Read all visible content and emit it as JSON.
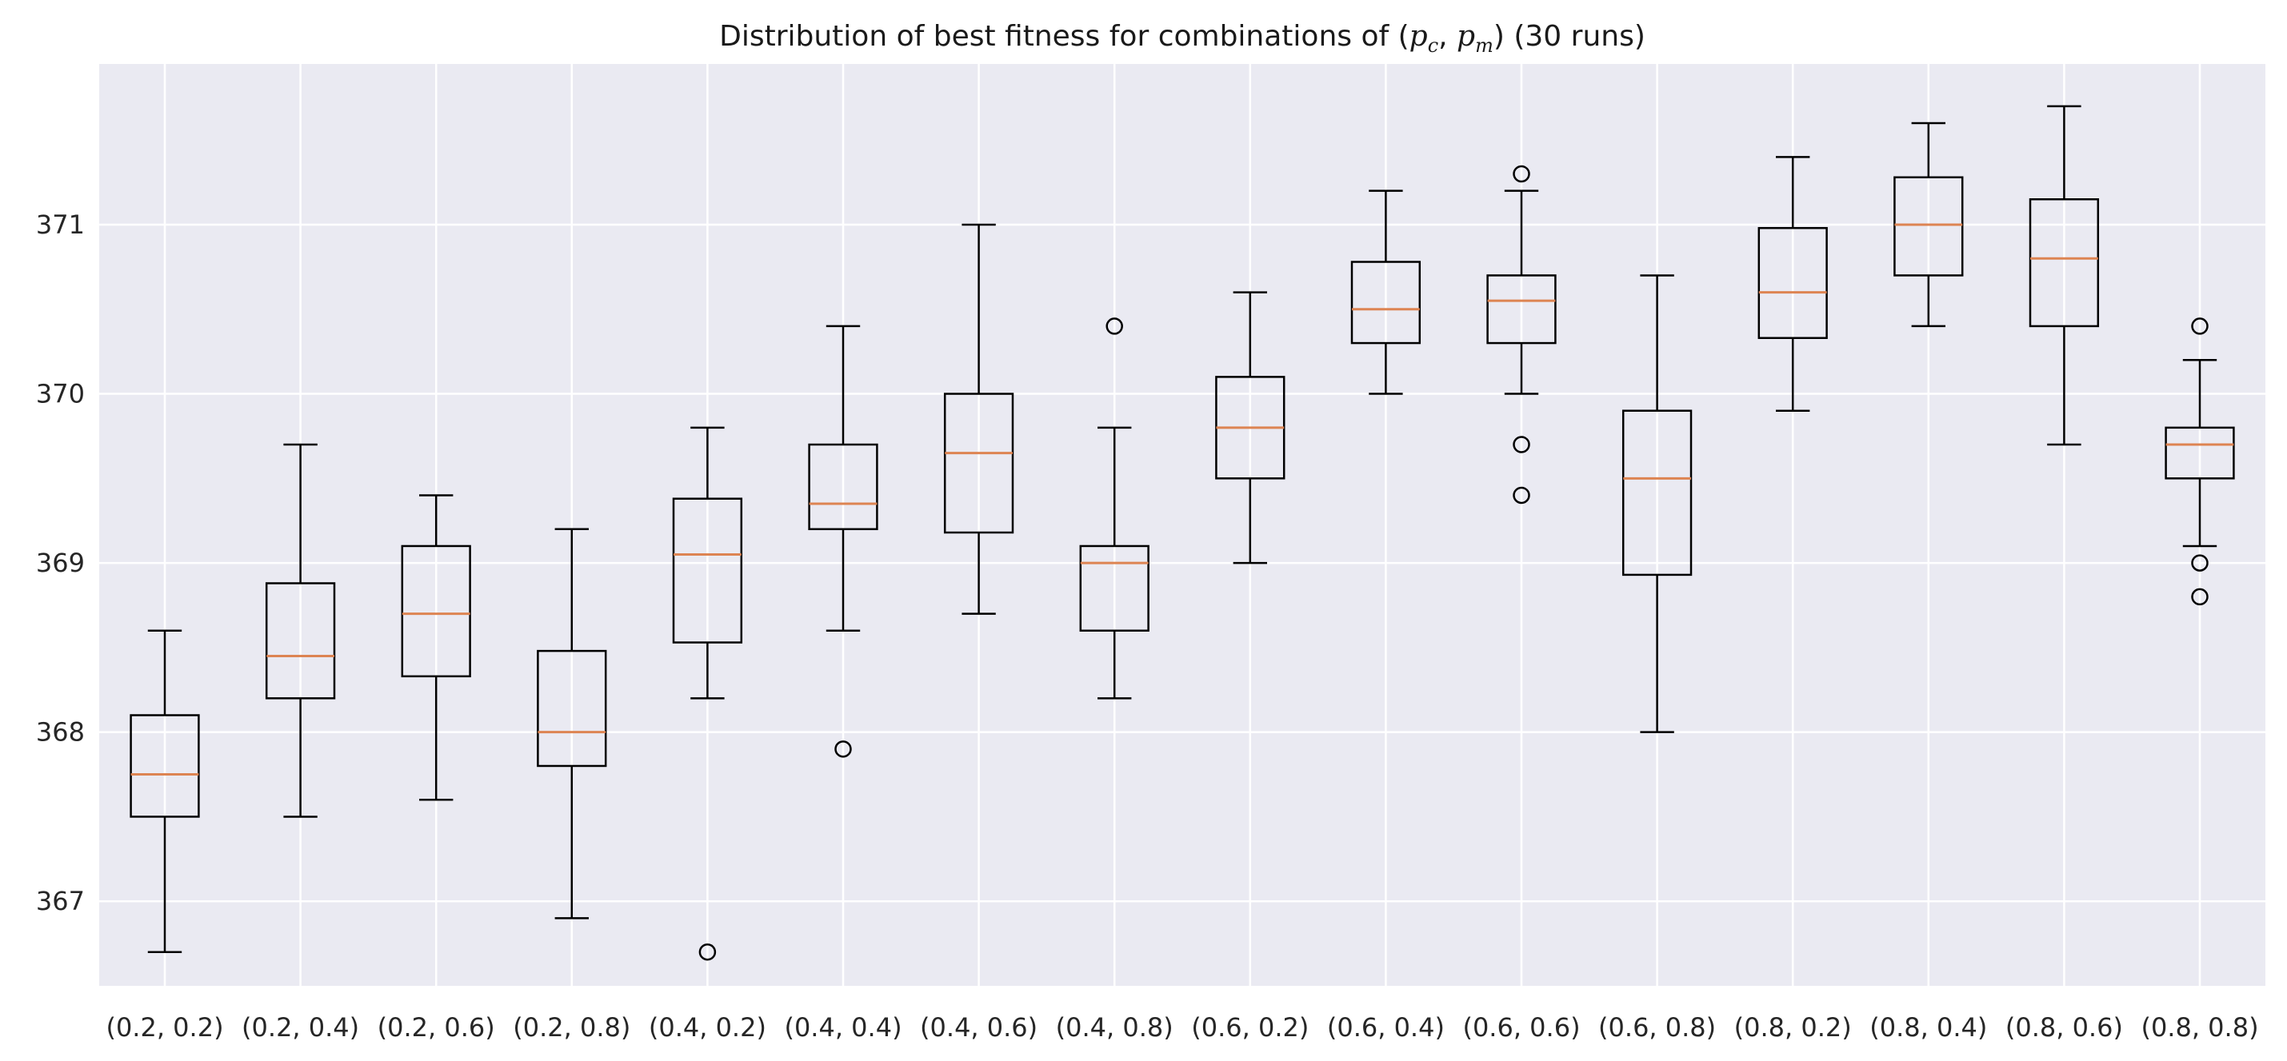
{
  "chart_data": {
    "type": "box",
    "title_parts": {
      "prefix": "Distribution of best fitness for combinations of (",
      "var1": "p",
      "sub1": "c",
      "sep": ", ",
      "var2": "p",
      "sub2": "m",
      "suffix": ") (30 runs)"
    },
    "xlabel": "",
    "ylabel": "",
    "ylim": [
      366.5,
      371.95
    ],
    "yticks": [
      367,
      368,
      369,
      370,
      371
    ],
    "grid": true,
    "colors": {
      "background": "#eaeaf2",
      "grid": "#ffffff",
      "box": "#000000",
      "median": "#dd8452"
    },
    "categories": [
      "(0.2, 0.2)",
      "(0.2, 0.4)",
      "(0.2, 0.6)",
      "(0.2, 0.8)",
      "(0.4, 0.2)",
      "(0.4, 0.4)",
      "(0.4, 0.6)",
      "(0.4, 0.8)",
      "(0.6, 0.2)",
      "(0.6, 0.4)",
      "(0.6, 0.6)",
      "(0.6, 0.8)",
      "(0.8, 0.2)",
      "(0.8, 0.4)",
      "(0.8, 0.6)",
      "(0.8, 0.8)"
    ],
    "boxes": [
      {
        "whislo": 366.7,
        "q1": 367.5,
        "med": 367.75,
        "q3": 368.1,
        "whishi": 368.6,
        "fliers": []
      },
      {
        "whislo": 367.5,
        "q1": 368.2,
        "med": 368.45,
        "q3": 368.88,
        "whishi": 369.7,
        "fliers": []
      },
      {
        "whislo": 367.6,
        "q1": 368.33,
        "med": 368.7,
        "q3": 369.1,
        "whishi": 369.4,
        "fliers": []
      },
      {
        "whislo": 366.9,
        "q1": 367.8,
        "med": 368.0,
        "q3": 368.48,
        "whishi": 369.2,
        "fliers": []
      },
      {
        "whislo": 368.2,
        "q1": 368.53,
        "med": 369.05,
        "q3": 369.38,
        "whishi": 369.8,
        "fliers": [
          366.7
        ]
      },
      {
        "whislo": 368.6,
        "q1": 369.2,
        "med": 369.35,
        "q3": 369.7,
        "whishi": 370.4,
        "fliers": [
          367.9
        ]
      },
      {
        "whislo": 368.7,
        "q1": 369.18,
        "med": 369.65,
        "q3": 370.0,
        "whishi": 371.0,
        "fliers": []
      },
      {
        "whislo": 368.2,
        "q1": 368.6,
        "med": 369.0,
        "q3": 369.1,
        "whishi": 369.8,
        "fliers": [
          370.4
        ]
      },
      {
        "whislo": 369.0,
        "q1": 369.5,
        "med": 369.8,
        "q3": 370.1,
        "whishi": 370.6,
        "fliers": []
      },
      {
        "whislo": 370.0,
        "q1": 370.3,
        "med": 370.5,
        "q3": 370.78,
        "whishi": 371.2,
        "fliers": []
      },
      {
        "whislo": 370.0,
        "q1": 370.3,
        "med": 370.55,
        "q3": 370.7,
        "whishi": 371.2,
        "fliers": [
          371.3,
          369.7,
          369.4
        ]
      },
      {
        "whislo": 368.0,
        "q1": 368.93,
        "med": 369.5,
        "q3": 369.9,
        "whishi": 370.7,
        "fliers": []
      },
      {
        "whislo": 369.9,
        "q1": 370.33,
        "med": 370.6,
        "q3": 370.98,
        "whishi": 371.4,
        "fliers": []
      },
      {
        "whislo": 370.4,
        "q1": 370.7,
        "med": 371.0,
        "q3": 371.28,
        "whishi": 371.6,
        "fliers": []
      },
      {
        "whislo": 369.7,
        "q1": 370.4,
        "med": 370.8,
        "q3": 371.15,
        "whishi": 371.7,
        "fliers": []
      },
      {
        "whislo": 369.1,
        "q1": 369.5,
        "med": 369.7,
        "q3": 369.8,
        "whishi": 370.2,
        "fliers": [
          370.4,
          369.0,
          368.8
        ]
      }
    ]
  }
}
